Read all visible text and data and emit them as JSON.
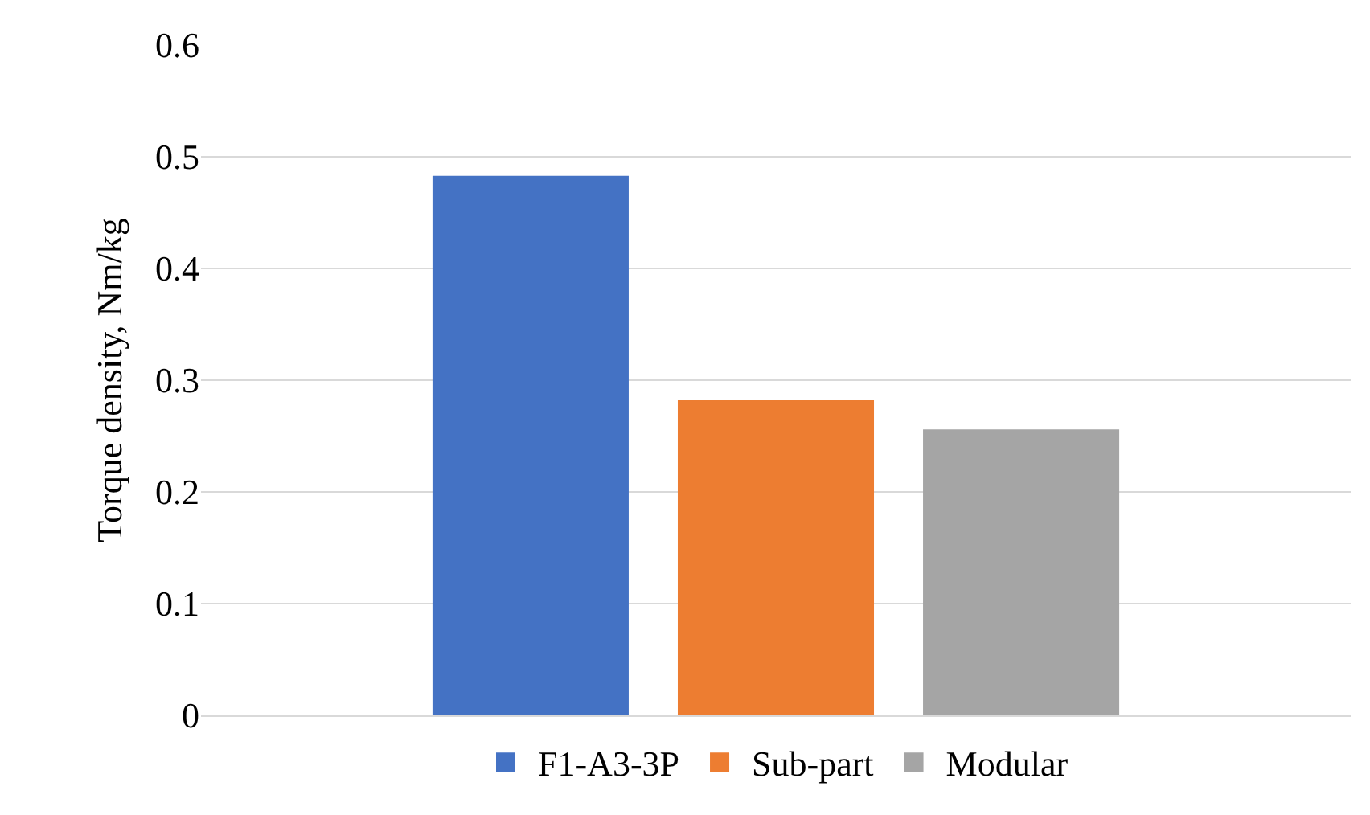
{
  "chart_data": {
    "type": "bar",
    "ylabel": "Torque density, Nm/kg",
    "categories": [
      null
    ],
    "series": [
      {
        "name": "F1-A3-3P",
        "color": "#4472c4",
        "values": [
          0.483
        ]
      },
      {
        "name": "Sub-part",
        "color": "#ed7d31",
        "values": [
          0.282
        ]
      },
      {
        "name": "Modular",
        "color": "#a5a5a5",
        "values": [
          0.256
        ]
      }
    ],
    "ylim": [
      0,
      0.6
    ],
    "yticks": [
      {
        "value": 0,
        "label": "0"
      },
      0.1,
      0.2,
      0.3,
      0.4,
      0.5,
      0.6
    ],
    "grid": "y",
    "legend": "bottom"
  }
}
